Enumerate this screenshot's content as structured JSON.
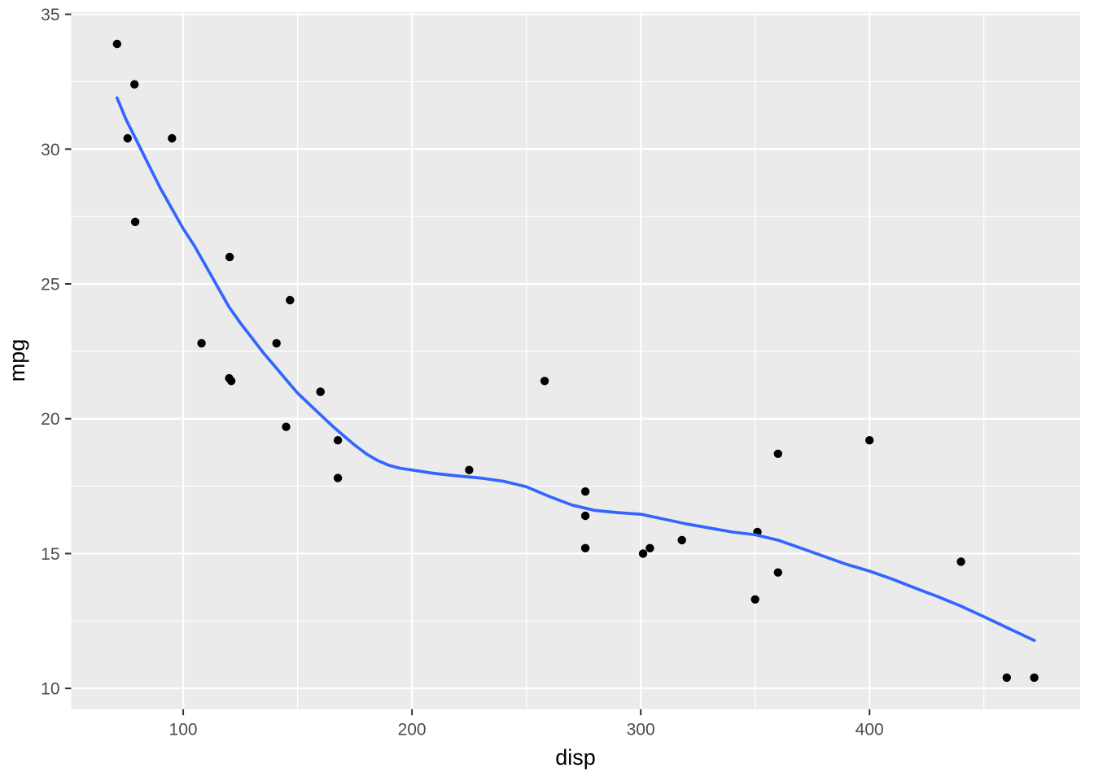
{
  "chart_data": {
    "type": "scatter",
    "title": "",
    "xlabel": "disp",
    "ylabel": "mpg",
    "xlim": [
      51.05,
      492.05
    ],
    "ylim": [
      9.23,
      35.08
    ],
    "x_ticks": [
      100,
      200,
      300,
      400
    ],
    "x_minor_ticks": [
      150,
      250,
      350,
      450
    ],
    "y_ticks": [
      10,
      15,
      20,
      25,
      30,
      35
    ],
    "y_minor_ticks": [
      12.5,
      17.5,
      22.5,
      27.5,
      32.5
    ],
    "grid": "on",
    "legend": "none",
    "points": [
      [
        160.0,
        21.0
      ],
      [
        160.0,
        21.0
      ],
      [
        108.0,
        22.8
      ],
      [
        258.0,
        21.4
      ],
      [
        360.0,
        18.7
      ],
      [
        225.0,
        18.1
      ],
      [
        360.0,
        14.3
      ],
      [
        146.7,
        24.4
      ],
      [
        140.8,
        22.8
      ],
      [
        167.6,
        19.2
      ],
      [
        167.6,
        17.8
      ],
      [
        275.8,
        16.4
      ],
      [
        275.8,
        17.3
      ],
      [
        275.8,
        15.2
      ],
      [
        472.0,
        10.4
      ],
      [
        460.0,
        10.4
      ],
      [
        440.0,
        14.7
      ],
      [
        78.7,
        32.4
      ],
      [
        75.7,
        30.4
      ],
      [
        71.1,
        33.9
      ],
      [
        120.1,
        21.5
      ],
      [
        318.0,
        15.5
      ],
      [
        304.0,
        15.2
      ],
      [
        350.0,
        13.3
      ],
      [
        400.0,
        19.2
      ],
      [
        79.0,
        27.3
      ],
      [
        120.3,
        26.0
      ],
      [
        95.1,
        30.4
      ],
      [
        351.0,
        15.8
      ],
      [
        145.0,
        19.7
      ],
      [
        301.0,
        15.0
      ],
      [
        121.0,
        21.4
      ]
    ],
    "smooth_line": {
      "name": "loess-fit",
      "points": [
        [
          71.1,
          31.9
        ],
        [
          75,
          31.1
        ],
        [
          80,
          30.25
        ],
        [
          85,
          29.4
        ],
        [
          90,
          28.55
        ],
        [
          95,
          27.8
        ],
        [
          100,
          27.05
        ],
        [
          105,
          26.4
        ],
        [
          110,
          25.65
        ],
        [
          115,
          24.9
        ],
        [
          120,
          24.15
        ],
        [
          125,
          23.55
        ],
        [
          130,
          23.0
        ],
        [
          135,
          22.45
        ],
        [
          140,
          21.95
        ],
        [
          145,
          21.45
        ],
        [
          150,
          20.95
        ],
        [
          155,
          20.55
        ],
        [
          160,
          20.15
        ],
        [
          165,
          19.75
        ],
        [
          170,
          19.38
        ],
        [
          175,
          19.02
        ],
        [
          180,
          18.7
        ],
        [
          185,
          18.45
        ],
        [
          190,
          18.27
        ],
        [
          195,
          18.16
        ],
        [
          200,
          18.1
        ],
        [
          210,
          17.97
        ],
        [
          220,
          17.88
        ],
        [
          230,
          17.8
        ],
        [
          240,
          17.68
        ],
        [
          250,
          17.48
        ],
        [
          260,
          17.12
        ],
        [
          270,
          16.8
        ],
        [
          280,
          16.6
        ],
        [
          290,
          16.52
        ],
        [
          300,
          16.46
        ],
        [
          310,
          16.28
        ],
        [
          320,
          16.1
        ],
        [
          330,
          15.95
        ],
        [
          340,
          15.8
        ],
        [
          350,
          15.7
        ],
        [
          360,
          15.5
        ],
        [
          370,
          15.2
        ],
        [
          380,
          14.9
        ],
        [
          390,
          14.6
        ],
        [
          400,
          14.35
        ],
        [
          410,
          14.05
        ],
        [
          420,
          13.72
        ],
        [
          430,
          13.4
        ],
        [
          440,
          13.05
        ],
        [
          450,
          12.66
        ],
        [
          460,
          12.26
        ],
        [
          472,
          11.78
        ]
      ]
    },
    "style": {
      "panel_bg": "#EBEBEB",
      "grid_color": "#FFFFFF",
      "point_color": "#000000",
      "smooth_color": "#3366FF",
      "tick_label_color": "#4D4D4D",
      "axis_title_color": "#000000",
      "tick_mark_color": "#333333"
    }
  }
}
